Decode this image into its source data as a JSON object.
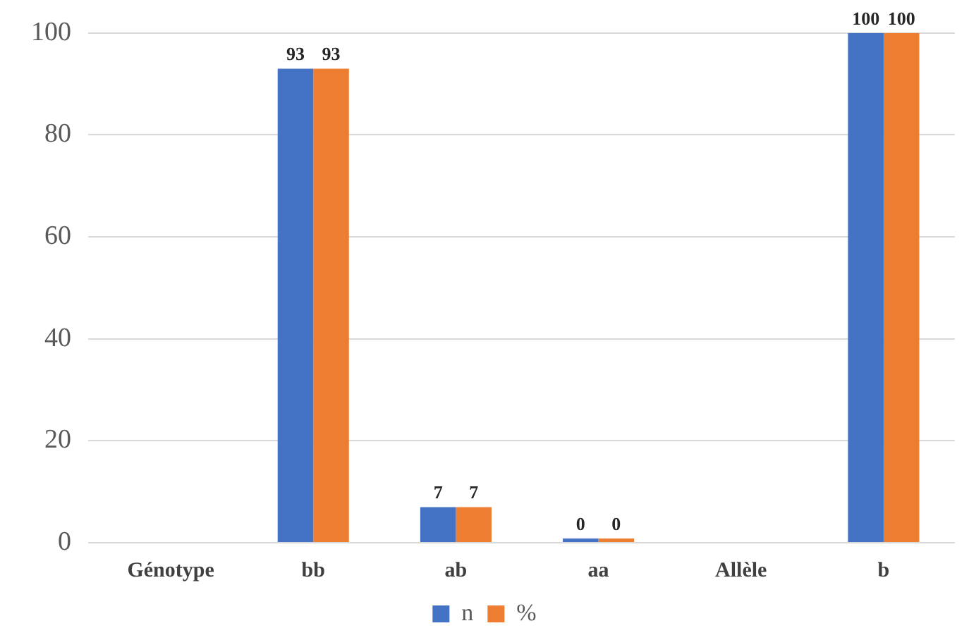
{
  "chart_data": {
    "type": "bar",
    "categories": [
      "Génotype",
      "bb",
      "ab",
      "aa",
      "Allèle",
      "b"
    ],
    "series": [
      {
        "name": "n",
        "color": "#4472c4",
        "values": [
          null,
          93,
          7,
          0,
          null,
          100
        ]
      },
      {
        "name": "%",
        "color": "#ed7d31",
        "values": [
          null,
          93,
          7,
          0,
          null,
          100
        ]
      }
    ],
    "ylim": [
      0,
      100
    ],
    "yticks": [
      0,
      20,
      40,
      60,
      80,
      100
    ],
    "grid": "y",
    "legend": "bottom",
    "data_labels": true
  }
}
